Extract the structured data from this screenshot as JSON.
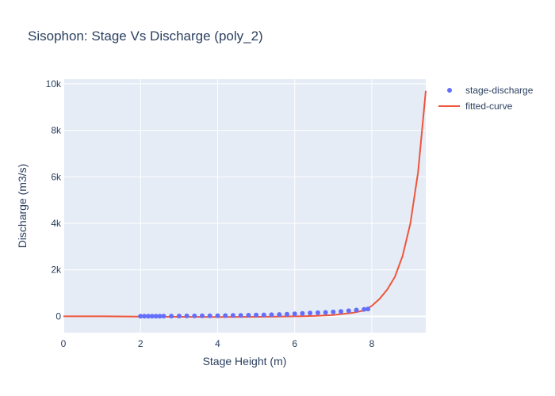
{
  "chart_data": {
    "type": "scatter",
    "title": "Sisophon: Stage Vs Discharge (poly_2)",
    "xlabel": "Stage Height (m)",
    "ylabel": "Discharge (m3/s)",
    "xlim": [
      0,
      9.4
    ],
    "ylim": [
      -700,
      10200
    ],
    "x_ticks": [
      0,
      2,
      4,
      6,
      8
    ],
    "x_tick_labels": [
      "0",
      "2",
      "4",
      "6",
      "8"
    ],
    "y_ticks": [
      0,
      2000,
      4000,
      6000,
      8000,
      10000
    ],
    "y_tick_labels": [
      "0",
      "2k",
      "4k",
      "6k",
      "8k",
      "10k"
    ],
    "grid": true,
    "legend_position": "top-right",
    "colors": {
      "plot_background": "#e5ecf6",
      "grid": "#ffffff",
      "stage_discharge": "#636efa",
      "fitted_curve": "#ef553b",
      "text": "#2a3f5f"
    },
    "series": [
      {
        "name": "stage-discharge",
        "mode": "markers",
        "x": [
          2.0,
          2.1,
          2.2,
          2.3,
          2.4,
          2.5,
          2.6,
          2.8,
          3.0,
          3.2,
          3.4,
          3.6,
          3.8,
          4.0,
          4.2,
          4.4,
          4.6,
          4.8,
          5.0,
          5.2,
          5.4,
          5.6,
          5.8,
          6.0,
          6.2,
          6.4,
          6.6,
          6.8,
          7.0,
          7.2,
          7.4,
          7.6,
          7.8,
          7.9
        ],
        "y": [
          5,
          6,
          7,
          8,
          9,
          10,
          11,
          13,
          15,
          18,
          20,
          23,
          26,
          30,
          34,
          38,
          43,
          48,
          55,
          62,
          70,
          80,
          95,
          110,
          125,
          140,
          155,
          170,
          190,
          210,
          240,
          270,
          300,
          320
        ]
      },
      {
        "name": "fitted-curve",
        "mode": "lines",
        "x": [
          0,
          1,
          2,
          3,
          4,
          5,
          5.5,
          6,
          6.5,
          7,
          7.5,
          7.8,
          8.0,
          8.2,
          8.4,
          8.6,
          8.8,
          9.0,
          9.2,
          9.4
        ],
        "y": [
          0,
          0,
          -10,
          -20,
          -25,
          -20,
          -10,
          0,
          20,
          60,
          150,
          250,
          450,
          750,
          1150,
          1700,
          2600,
          4000,
          6200,
          9700
        ]
      }
    ]
  }
}
